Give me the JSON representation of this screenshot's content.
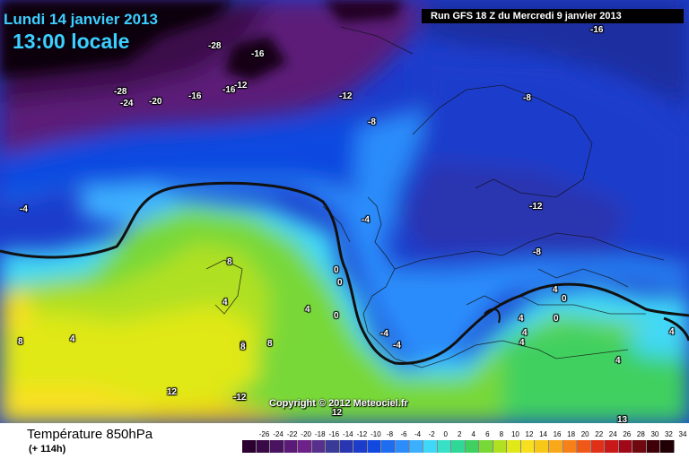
{
  "header": {
    "date": "Lundi 14 janvier 2013",
    "time": "13:00 locale",
    "run": "Run GFS 18 Z du Mercredi 9 janvier 2013"
  },
  "copyright": "Copyright © 2012 Meteociel.fr",
  "footer": {
    "title": "Température 850hPa",
    "lead": "(+ 114h)"
  },
  "legend": {
    "ticks": [
      "-26",
      "-24",
      "-22",
      "-20",
      "-18",
      "-16",
      "-14",
      "-12",
      "-10",
      "-8",
      "-6",
      "-4",
      "-2",
      "0",
      "2",
      "4",
      "6",
      "8",
      "10",
      "12",
      "14",
      "16",
      "18",
      "20",
      "22",
      "24",
      "26",
      "28",
      "30",
      "32",
      "34"
    ],
    "colors": [
      "#2b0030",
      "#3a0a48",
      "#4a1360",
      "#5c1a78",
      "#6e2188",
      "#56308c",
      "#3a3a98",
      "#2a36b0",
      "#1c3ccc",
      "#1048e0",
      "#1e6cf0",
      "#2c8cfa",
      "#3cb0ff",
      "#40d8f8",
      "#38e0c8",
      "#30d898",
      "#40d060",
      "#78d838",
      "#b0e020",
      "#e0e818",
      "#f8e020",
      "#f8c818",
      "#f8a818",
      "#f88018",
      "#f05818",
      "#e03018",
      "#c81818",
      "#a00818",
      "#700810",
      "#400008",
      "#200004"
    ]
  },
  "map": {
    "contour_labels": [
      "-28",
      "-16",
      "-28",
      "-24",
      "-20",
      "-16",
      "-16",
      "-12",
      "-16",
      "-12",
      "-8",
      "-8",
      "-4",
      "-4",
      "-12",
      "-8",
      "8",
      "0",
      "0",
      "4",
      "0",
      "4",
      "4",
      "0",
      "4",
      "0",
      "-4",
      "-4",
      "4",
      "4",
      "4",
      "8",
      "4",
      "0",
      "8",
      "4",
      "-12",
      "12",
      "12",
      "8",
      "13"
    ]
  }
}
